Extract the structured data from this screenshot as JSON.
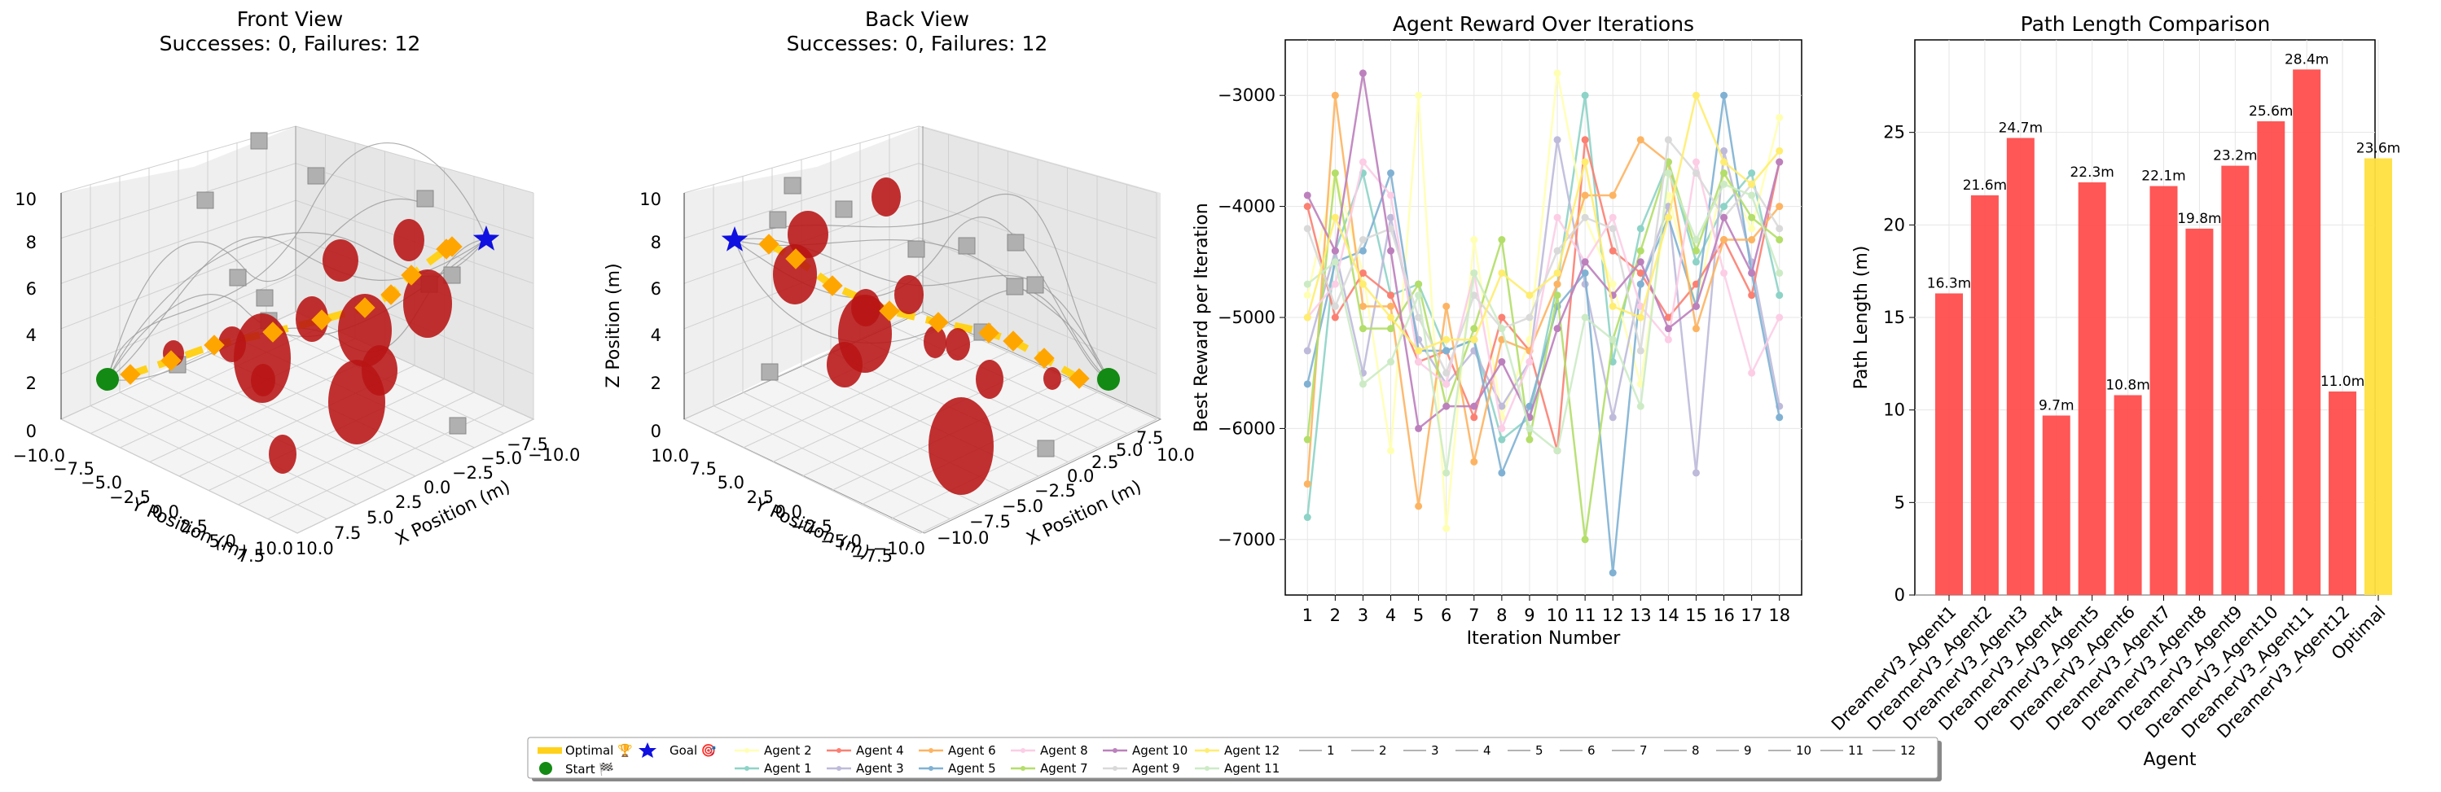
{
  "colors": {
    "obstacle": "#b81414",
    "optimal": "#ffd11a",
    "waypoint": "#ffa500",
    "start": "#138a13",
    "goal": "#1010e0",
    "bar_agent": "#ff4d4d",
    "bar_optimal": "#ffdf3f",
    "box": "#b0b0b0"
  },
  "chart_data": [
    {
      "type": "scatter3d",
      "title_line1": "Front View",
      "title_line2": "Successes: 0, Failures: 12",
      "xlabel": "X Position (m)",
      "ylabel": "Y Position (m)",
      "zlabel": "",
      "xticks": [
        "−10.0",
        "−7.5",
        "−5.0",
        "−2.5",
        "0.0",
        "2.5",
        "5.0",
        "7.5",
        "10.0"
      ],
      "yticks": [
        "−10.0",
        "−7.5",
        "−5.0",
        "−2.5",
        "0.0",
        "2.5",
        "5.0",
        "7.5",
        "10.0"
      ],
      "zticks": [
        "0",
        "2",
        "4",
        "6",
        "8",
        "10"
      ]
    },
    {
      "type": "scatter3d",
      "title_line1": "Back View",
      "title_line2": "Successes: 0, Failures: 12",
      "xlabel": "X Position (m)",
      "ylabel": "Y Position (m)",
      "zlabel": "Z Position (m)",
      "xticks": [
        "−10.0",
        "−7.5",
        "−5.0",
        "−2.5",
        "0.0",
        "2.5",
        "5.0",
        "7.5",
        "10.0"
      ],
      "yticks": [
        "−10.0",
        "−7.5",
        "−5.0",
        "−2.5",
        "0.0",
        "2.5",
        "5.0",
        "7.5",
        "10.0"
      ],
      "zticks": [
        "0",
        "2",
        "4",
        "6",
        "8",
        "10"
      ]
    },
    {
      "type": "line",
      "title": "Agent Reward Over Iterations",
      "xlabel": "Iteration Number",
      "ylabel": "Best Reward per Iteration",
      "x": [
        1,
        2,
        3,
        4,
        5,
        6,
        7,
        8,
        9,
        10,
        11,
        12,
        13,
        14,
        15,
        16,
        17,
        18
      ],
      "ylim": [
        -7500,
        -2500
      ],
      "yticks": [
        -7000,
        -6000,
        -5000,
        -4000,
        -3000
      ],
      "ytick_labels": [
        "−7000",
        "−6000",
        "−5000",
        "−4000",
        "−3000"
      ],
      "grid": true,
      "series": [
        {
          "name": "Agent 1",
          "color": "#8dd3c7",
          "values": [
            -6800,
            -4400,
            -3700,
            -4800,
            -4700,
            -5300,
            -5200,
            -6100,
            -5900,
            -4700,
            -3000,
            -5400,
            -4200,
            -3600,
            -4500,
            -4000,
            -3700,
            -4800
          ]
        },
        {
          "name": "Agent 2",
          "color": "#ffffb3",
          "values": [
            -4800,
            -3700,
            -4600,
            -6200,
            -3000,
            -6900,
            -4300,
            -5900,
            -5200,
            -2800,
            -4100,
            -4700,
            -5600,
            -3900,
            -4900,
            -3700,
            -4200,
            -3200
          ]
        },
        {
          "name": "Agent 3",
          "color": "#bebada",
          "values": [
            -5300,
            -4400,
            -5500,
            -4100,
            -5200,
            -5600,
            -5300,
            -5800,
            -5400,
            -3400,
            -4700,
            -5900,
            -4700,
            -4000,
            -6400,
            -3500,
            -4500,
            -5800
          ]
        },
        {
          "name": "Agent 4",
          "color": "#fb8072",
          "values": [
            -4000,
            -5000,
            -4600,
            -4800,
            -5400,
            -5300,
            -5900,
            -5000,
            -5300,
            -6200,
            -3400,
            -4400,
            -4600,
            -5000,
            -4700,
            -4300,
            -4800,
            -3600
          ]
        },
        {
          "name": "Agent 5",
          "color": "#80b1d3",
          "values": [
            -5600,
            -4500,
            -4400,
            -3700,
            -5300,
            -5300,
            -5200,
            -6400,
            -5800,
            -4900,
            -4600,
            -7300,
            -4700,
            -4100,
            -4900,
            -3000,
            -4600,
            -5900
          ]
        },
        {
          "name": "Agent 6",
          "color": "#fdb462",
          "values": [
            -6500,
            -3000,
            -4900,
            -4900,
            -6700,
            -4900,
            -6300,
            -5200,
            -5300,
            -4700,
            -3900,
            -3900,
            -3400,
            -3600,
            -5100,
            -4300,
            -4300,
            -4000
          ]
        },
        {
          "name": "Agent 7",
          "color": "#b3de69",
          "values": [
            -6100,
            -3700,
            -5100,
            -5100,
            -4700,
            -5800,
            -5100,
            -4300,
            -6100,
            -4800,
            -7000,
            -5200,
            -4400,
            -3600,
            -4400,
            -3700,
            -4100,
            -4300
          ]
        },
        {
          "name": "Agent 8",
          "color": "#fccde5",
          "values": [
            -5000,
            -4700,
            -3600,
            -3900,
            -5400,
            -5600,
            -4600,
            -6000,
            -5400,
            -4100,
            -4500,
            -4100,
            -4900,
            -5200,
            -3600,
            -4600,
            -5500,
            -5000
          ]
        },
        {
          "name": "Agent 9",
          "color": "#d9d9d9",
          "values": [
            -4200,
            -4900,
            -4300,
            -4200,
            -5000,
            -5500,
            -4800,
            -5100,
            -5000,
            -4400,
            -4100,
            -4200,
            -5300,
            -3400,
            -3700,
            -4100,
            -3800,
            -4200
          ]
        },
        {
          "name": "Agent 10",
          "color": "#bc80bd",
          "values": [
            -3900,
            -4400,
            -2800,
            -4400,
            -6000,
            -5800,
            -5800,
            -5400,
            -5900,
            -5100,
            -4500,
            -4800,
            -4500,
            -5100,
            -4900,
            -4100,
            -4600,
            -3600
          ]
        },
        {
          "name": "Agent 11",
          "color": "#ccebc5",
          "values": [
            -4700,
            -4500,
            -5600,
            -5400,
            -4800,
            -6400,
            -4600,
            -5100,
            -6000,
            -6200,
            -5000,
            -5200,
            -5800,
            -3700,
            -4300,
            -3800,
            -3900,
            -4600
          ]
        },
        {
          "name": "Agent 12",
          "color": "#ffed6f",
          "values": [
            -5000,
            -4100,
            -4700,
            -5000,
            -5300,
            -5200,
            -5200,
            -4600,
            -4800,
            -4600,
            -3600,
            -4900,
            -5000,
            -4100,
            -3000,
            -3600,
            -3800,
            -3500
          ]
        }
      ]
    },
    {
      "type": "bar",
      "title": "Path Length Comparison",
      "xlabel": "Agent",
      "ylabel": "Path Length (m)",
      "categories": [
        "DreamerV3_Agent1",
        "DreamerV3_Agent2",
        "DreamerV3_Agent3",
        "DreamerV3_Agent4",
        "DreamerV3_Agent5",
        "DreamerV3_Agent6",
        "DreamerV3_Agent7",
        "DreamerV3_Agent8",
        "DreamerV3_Agent9",
        "DreamerV3_Agent10",
        "DreamerV3_Agent11",
        "DreamerV3_Agent12",
        "Optimal"
      ],
      "values": [
        16.3,
        21.6,
        24.7,
        9.7,
        22.3,
        10.8,
        22.1,
        19.8,
        23.2,
        25.6,
        28.4,
        11.0,
        23.6
      ],
      "data_labels": [
        "16.3m",
        "21.6m",
        "24.7m",
        "9.7m",
        "22.3m",
        "10.8m",
        "22.1m",
        "19.8m",
        "23.2m",
        "25.6m",
        "28.4m",
        "11.0m",
        "23.6m"
      ],
      "ylim": [
        0,
        30
      ],
      "yticks": [
        0,
        5,
        10,
        15,
        20,
        25
      ],
      "grid": true
    }
  ],
  "legend": {
    "optimal": "Optimal 🏆",
    "start": "Start 🏁",
    "goal": "Goal 🎯",
    "agents": [
      "Agent 1",
      "Agent 2",
      "Agent 3",
      "Agent 4",
      "Agent 5",
      "Agent 6",
      "Agent 7",
      "Agent 8",
      "Agent 9",
      "Agent 10",
      "Agent 11",
      "Agent 12"
    ],
    "numbers": [
      "1",
      "2",
      "3",
      "4",
      "5",
      "6",
      "7",
      "8",
      "9",
      "10",
      "11",
      "12"
    ]
  }
}
